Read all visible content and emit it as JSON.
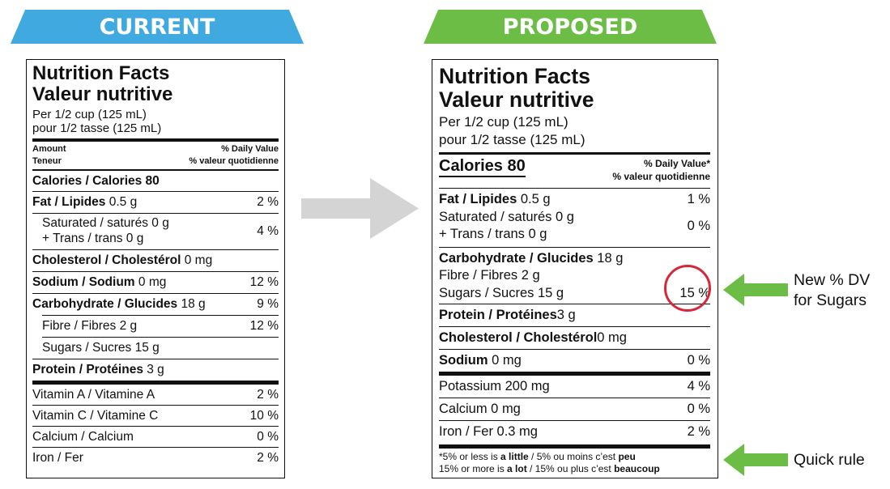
{
  "banners": {
    "current": "CURRENT",
    "proposed": "PROPOSED"
  },
  "colors": {
    "current_banner": "#3fa9e0",
    "proposed_banner": "#6cbd45",
    "big_arrow": "#d4d4d4",
    "side_arrow": "#6cbd45",
    "circle": "#d9273a"
  },
  "current": {
    "title_en": "Nutrition Facts",
    "title_fr": "Valeur nutritive",
    "serving_en": "Per 1/2 cup (125 mL)",
    "serving_fr": "pour 1/2 tasse (125 mL)",
    "amount_en": "Amount",
    "amount_fr": "Teneur",
    "dv_en": "% Daily Value",
    "dv_fr": "% valeur quotidienne",
    "calories": "Calories / Calories 80",
    "rows": [
      {
        "bold": "Fat / Lipides",
        "rest": " 0.5 g",
        "dv": "2 %",
        "indent": false
      },
      {
        "bold": "",
        "rest": "Saturated / saturés 0 g",
        "rest2": "+ Trans / trans 0 g",
        "dv": "4 %",
        "indent": true
      },
      {
        "bold": "Cholesterol / Cholestérol",
        "rest": " 0 mg",
        "dv": "",
        "indent": false
      },
      {
        "bold": "Sodium / Sodium",
        "rest": " 0 mg",
        "dv": "12 %",
        "indent": false
      },
      {
        "bold": "Carbohydrate / Glucides",
        "rest": " 18 g",
        "dv": "9 %",
        "indent": false
      },
      {
        "bold": "",
        "rest": "Fibre / Fibres 2 g",
        "dv": "12 %",
        "indent": true
      },
      {
        "bold": "",
        "rest": "Sugars / Sucres 15 g",
        "dv": "",
        "indent": true
      },
      {
        "bold": "Protein / Protéines",
        "rest": " 3 g",
        "dv": "",
        "indent": false
      }
    ],
    "vitamins": [
      {
        "name": "Vitamin A / Vitamine A",
        "dv": "2 %"
      },
      {
        "name": "Vitamin C / Vitamine C",
        "dv": "10 %"
      },
      {
        "name": "Calcium / Calcium",
        "dv": "0 %"
      },
      {
        "name": "Iron / Fer",
        "dv": "2 %"
      }
    ]
  },
  "proposed": {
    "title_en": "Nutrition Facts",
    "title_fr": "Valeur nutritive",
    "serving_en": "Per 1/2 cup (125 mL)",
    "serving_fr": "pour 1/2 tasse (125 mL)",
    "calories": "Calories 80",
    "dv_en": "% Daily Value*",
    "dv_fr": "% valeur quotidienne",
    "fat_bold": "Fat / Lipides",
    "fat_rest": " 0.5 g",
    "fat_dv": "1 %",
    "sat_line1": "Saturated / saturés 0 g",
    "sat_line2": "+ Trans / trans 0 g",
    "sat_dv": "0 %",
    "carb_bold": "Carbohydrate / Glucides",
    "carb_rest": " 18 g",
    "fibre": "Fibre / Fibres 2 g",
    "sugars": "Sugars / Sucres 15 g",
    "sugars_dv": "15 %",
    "protein_bold": "Protein / Protéines",
    "protein_rest": " 3 g",
    "chol_bold": "Cholesterol / Cholestérol",
    "chol_rest": " 0 mg",
    "sodium_bold": "Sodium",
    "sodium_rest": " 0 mg",
    "sodium_dv": "0 %",
    "minerals": [
      {
        "name": "Potassium 200 mg",
        "dv": "4 %"
      },
      {
        "name": "Calcium 0 mg",
        "dv": "0 %"
      },
      {
        "name": "Iron / Fer 0.3 mg",
        "dv": "2 %"
      }
    ],
    "footnote1_a": "*5% or less is ",
    "footnote1_b": "a little",
    "footnote1_c": " / 5% ou moins c’est ",
    "footnote1_d": "peu",
    "footnote2_a": "15% or more is ",
    "footnote2_b": "a lot",
    "footnote2_c": " / 15% ou plus c’est ",
    "footnote2_d": "beaucoup"
  },
  "notes": {
    "dv_sugars_1": "New % DV",
    "dv_sugars_2": "for Sugars",
    "quick_rule": "Quick rule"
  }
}
